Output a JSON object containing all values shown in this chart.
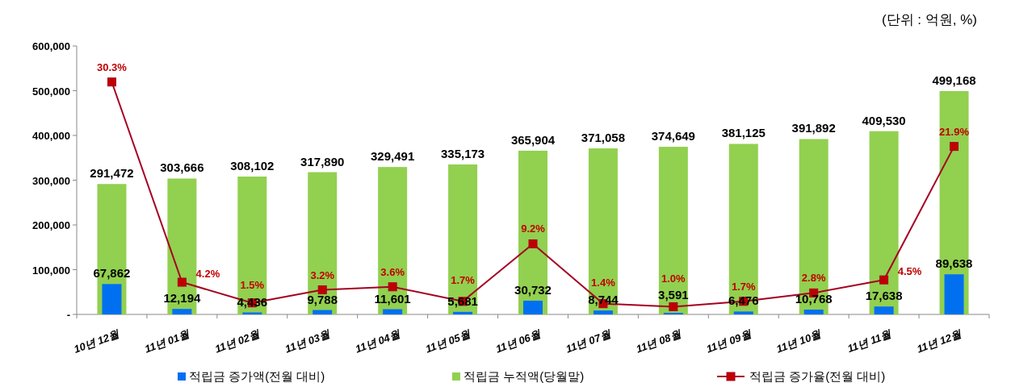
{
  "chart_data": {
    "type": "bar",
    "annotations": [
      "(단위 : 억원, %)"
    ],
    "categories": [
      "10년 12월",
      "11년 01월",
      "11년 02월",
      "11년 03월",
      "11년 04월",
      "11년 05월",
      "11년 06월",
      "11년 07월",
      "11년 08월",
      "11년 09월",
      "11년 10월",
      "11년 11월",
      "11년 12월"
    ],
    "series": [
      {
        "name": "적립금 누적액(당월말)",
        "color": "#92d050",
        "values": [
          291472,
          303666,
          308102,
          317890,
          329491,
          335173,
          365904,
          371058,
          374649,
          381125,
          391892,
          409530,
          499168
        ],
        "value_labels": [
          "291,472",
          "303,666",
          "308,102",
          "317,890",
          "329,491",
          "335,173",
          "365,904",
          "371,058",
          "374,649",
          "381,125",
          "391,892",
          "409,530",
          "499,168"
        ]
      },
      {
        "name": "적립금 증가액(전월 대비)",
        "color": "#0070f0",
        "values": [
          67862,
          12194,
          4436,
          9788,
          11601,
          5681,
          30732,
          8744,
          3591,
          6476,
          10768,
          17638,
          89638
        ],
        "value_labels": [
          "67,862",
          "12,194",
          "4,436",
          "9,788",
          "11,601",
          "5,681",
          "30,732",
          "8,744",
          "3,591",
          "6,476",
          "10,768",
          "17,638",
          "89,638"
        ]
      },
      {
        "name": "적립금 증가율(전월 대비)",
        "type": "line",
        "axis": "y2",
        "color": "#a50021",
        "marker": "square",
        "values": [
          30.3,
          4.2,
          1.5,
          3.2,
          3.6,
          1.7,
          9.2,
          1.4,
          1.0,
          1.7,
          2.8,
          4.5,
          21.9
        ],
        "value_labels": [
          "30.3%",
          "4.2%",
          "1.5%",
          "3.2%",
          "3.6%",
          "1.7%",
          "9.2%",
          "1.4%",
          "1.0%",
          "1.7%",
          "2.8%",
          "4.5%",
          "21.9%"
        ]
      }
    ],
    "ylim": [
      0,
      600000
    ],
    "yticks": [
      {
        "value": 0,
        "label": "-"
      },
      {
        "value": 100000,
        "label": "100,000"
      },
      {
        "value": 200000,
        "label": "200,000"
      },
      {
        "value": 300000,
        "label": "300,000"
      },
      {
        "value": 400000,
        "label": "400,000"
      },
      {
        "value": 500000,
        "label": "500,000"
      },
      {
        "value": 600000,
        "label": "600,000"
      }
    ],
    "y2lim": [
      0,
      35
    ],
    "legend": "bottom"
  }
}
